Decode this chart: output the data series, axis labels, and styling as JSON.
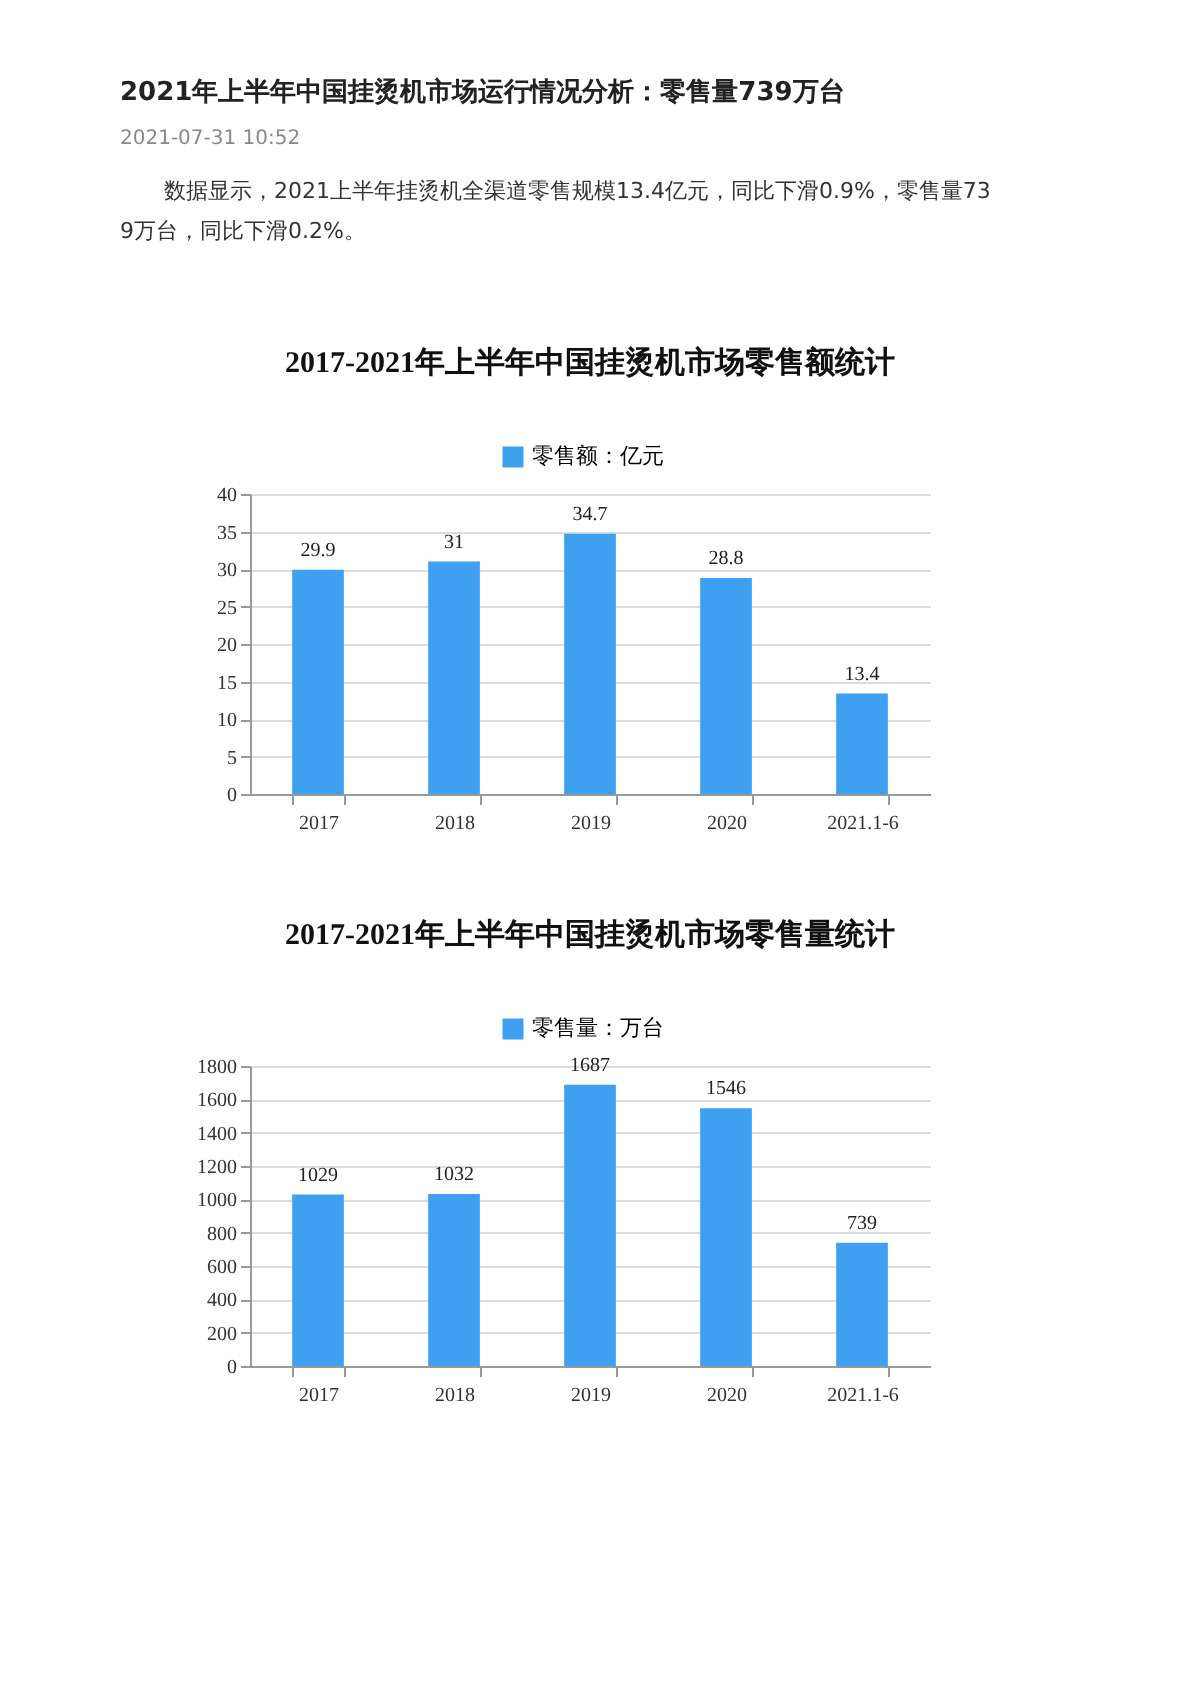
{
  "chart_data": [
    {
      "type": "other",
      "title": "2021年上半年中国挂烫机市场运行情况分析：零售量739万台",
      "subtitle": "2021-07-31 10:52",
      "annotations": [
        "数据显示，2021上半年挂烫机全渠道零售规模13.4亿元，同比下滑0.9%，零售量739万台，同比下滑0.2%。"
      ]
    },
    {
      "type": "bar",
      "title": "2017-2021年上半年中国挂烫机市场零售额统计",
      "categories": [
        "2017",
        "2018",
        "2019",
        "2020",
        "2021.1-6"
      ],
      "series": [
        {
          "name": "零售额：亿元",
          "color": "#3f9ff0",
          "values": [
            29.9,
            31,
            34.7,
            28.8,
            13.4
          ]
        }
      ],
      "ylim": [
        0,
        40
      ],
      "yticks": [
        0,
        5,
        10,
        15,
        20,
        25,
        30,
        35,
        40
      ],
      "grid": "y",
      "legend": "top",
      "data_labels": true
    },
    {
      "type": "bar",
      "title": "2017-2021年上半年中国挂烫机市场零售量统计",
      "categories": [
        "2017",
        "2018",
        "2019",
        "2020",
        "2021.1-6"
      ],
      "series": [
        {
          "name": "零售量：万台",
          "color": "#3f9ff0",
          "values": [
            1029,
            1032,
            1687,
            1546,
            739
          ]
        }
      ],
      "ylim": [
        0,
        1800
      ],
      "yticks": [
        0,
        200,
        400,
        600,
        800,
        1000,
        1200,
        1400,
        1600,
        1800
      ],
      "grid": "y",
      "legend": "top",
      "data_labels": true
    }
  ]
}
